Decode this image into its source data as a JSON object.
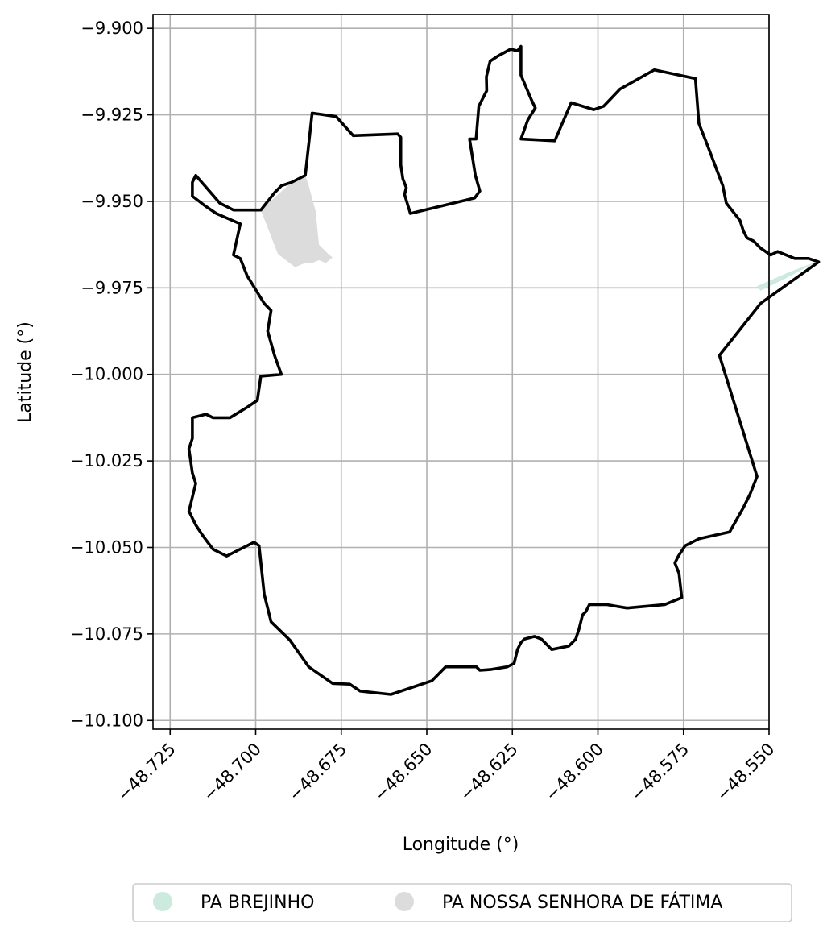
{
  "chart_data": {
    "type": "map",
    "xlabel": "Longitude (°)",
    "ylabel": "Latitude (°)",
    "xlim": [
      -48.73,
      -48.55
    ],
    "ylim": [
      -10.1025,
      -9.896
    ],
    "xticks": [
      -48.725,
      -48.7,
      -48.675,
      -48.65,
      -48.625,
      -48.6,
      -48.575,
      -48.55
    ],
    "xtick_labels": [
      "−48.725",
      "−48.700",
      "−48.675",
      "−48.650",
      "−48.625",
      "−48.600",
      "−48.575",
      "−48.550"
    ],
    "yticks": [
      -9.9,
      -9.925,
      -9.95,
      -9.975,
      -10.0,
      -10.025,
      -10.05,
      -10.075,
      -10.1
    ],
    "ytick_labels": [
      "−9.900",
      "−9.925",
      "−9.950",
      "−9.975",
      "−10.000",
      "−10.025",
      "−10.050",
      "−10.075",
      "−10.100"
    ],
    "grid": true,
    "legend_position": "bottom-center",
    "boundary": {
      "color": "#000000",
      "coords": [
        [
          -48.6835,
          -9.9245
        ],
        [
          -48.6765,
          -9.9255
        ],
        [
          -48.6715,
          -9.931
        ],
        [
          -48.6585,
          -9.9305
        ],
        [
          -48.6576,
          -9.9315
        ],
        [
          -48.6576,
          -9.9395
        ],
        [
          -48.657,
          -9.9435
        ],
        [
          -48.656,
          -9.946
        ],
        [
          -48.6565,
          -9.948
        ],
        [
          -48.6548,
          -9.9535
        ],
        [
          -48.636,
          -9.949
        ],
        [
          -48.6345,
          -9.947
        ],
        [
          -48.6358,
          -9.9425
        ],
        [
          -48.6375,
          -9.932
        ],
        [
          -48.6356,
          -9.932
        ],
        [
          -48.6348,
          -9.9225
        ],
        [
          -48.6325,
          -9.918
        ],
        [
          -48.6326,
          -9.914
        ],
        [
          -48.6315,
          -9.9095
        ],
        [
          -48.6292,
          -9.908
        ],
        [
          -48.6255,
          -9.906
        ],
        [
          -48.6235,
          -9.9065
        ],
        [
          -48.6225,
          -9.9052
        ],
        [
          -48.6225,
          -9.9135
        ],
        [
          -48.6195,
          -9.9205
        ],
        [
          -48.6183,
          -9.923
        ],
        [
          -48.6205,
          -9.9265
        ],
        [
          -48.6225,
          -9.932
        ],
        [
          -48.6126,
          -9.9325
        ],
        [
          -48.6078,
          -9.9215
        ],
        [
          -48.6012,
          -9.9235
        ],
        [
          -48.5983,
          -9.9225
        ],
        [
          -48.5935,
          -9.9175
        ],
        [
          -48.5835,
          -9.912
        ],
        [
          -48.5715,
          -9.9145
        ],
        [
          -48.5705,
          -9.9275
        ],
        [
          -48.5685,
          -9.9325
        ],
        [
          -48.5635,
          -9.9455
        ],
        [
          -48.5625,
          -9.9505
        ],
        [
          -48.5585,
          -9.9555
        ],
        [
          -48.5575,
          -9.9585
        ],
        [
          -48.5565,
          -9.9605
        ],
        [
          -48.5545,
          -9.9615
        ],
        [
          -48.5525,
          -9.9635
        ],
        [
          -48.5495,
          -9.9655
        ],
        [
          -48.5475,
          -9.9645
        ],
        [
          -48.5425,
          -9.9665
        ],
        [
          -48.5385,
          -9.9665
        ],
        [
          -48.5355,
          -9.9675
        ],
        [
          -48.5525,
          -9.9795
        ],
        [
          -48.5645,
          -9.9945
        ],
        [
          -48.5535,
          -10.0295
        ],
        [
          -48.5555,
          -10.0345
        ],
        [
          -48.5575,
          -10.0385
        ],
        [
          -48.5615,
          -10.0455
        ],
        [
          -48.5705,
          -10.0475
        ],
        [
          -48.5745,
          -10.0495
        ],
        [
          -48.5765,
          -10.0525
        ],
        [
          -48.5775,
          -10.0545
        ],
        [
          -48.5763,
          -10.0575
        ],
        [
          -48.5755,
          -10.0645
        ],
        [
          -48.5805,
          -10.0665
        ],
        [
          -48.5915,
          -10.0675
        ],
        [
          -48.5975,
          -10.0665
        ],
        [
          -48.6025,
          -10.0665
        ],
        [
          -48.6035,
          -10.0685
        ],
        [
          -48.6045,
          -10.0695
        ],
        [
          -48.6055,
          -10.0735
        ],
        [
          -48.6065,
          -10.0765
        ],
        [
          -48.6085,
          -10.0785
        ],
        [
          -48.6135,
          -10.0795
        ],
        [
          -48.6145,
          -10.0785
        ],
        [
          -48.6165,
          -10.0765
        ],
        [
          -48.6185,
          -10.0757
        ],
        [
          -48.6215,
          -10.0765
        ],
        [
          -48.6225,
          -10.0775
        ],
        [
          -48.6235,
          -10.0795
        ],
        [
          -48.6245,
          -10.0835
        ],
        [
          -48.6265,
          -10.0845
        ],
        [
          -48.6315,
          -10.0853
        ],
        [
          -48.6345,
          -10.0855
        ],
        [
          -48.6355,
          -10.0845
        ],
        [
          -48.6395,
          -10.0845
        ],
        [
          -48.6445,
          -10.0845
        ],
        [
          -48.6485,
          -10.0885
        ],
        [
          -48.6545,
          -10.0905
        ],
        [
          -48.6605,
          -10.0925
        ],
        [
          -48.6695,
          -10.0915
        ],
        [
          -48.6725,
          -10.0895
        ],
        [
          -48.6775,
          -10.0893
        ],
        [
          -48.6845,
          -10.0845
        ],
        [
          -48.69,
          -10.0768
        ],
        [
          -48.6955,
          -10.0715
        ],
        [
          -48.6975,
          -10.0635
        ],
        [
          -48.699,
          -10.0495
        ],
        [
          -48.7005,
          -10.0485
        ],
        [
          -48.7025,
          -10.0495
        ],
        [
          -48.7085,
          -10.0525
        ],
        [
          -48.7125,
          -10.0505
        ],
        [
          -48.7155,
          -10.0465
        ],
        [
          -48.7175,
          -10.0435
        ],
        [
          -48.7195,
          -10.0395
        ],
        [
          -48.7175,
          -10.0315
        ],
        [
          -48.7185,
          -10.0285
        ],
        [
          -48.7195,
          -10.0215
        ],
        [
          -48.7185,
          -10.0185
        ],
        [
          -48.7185,
          -10.0125
        ],
        [
          -48.7145,
          -10.0115
        ],
        [
          -48.7125,
          -10.0125
        ],
        [
          -48.7075,
          -10.0125
        ],
        [
          -48.7025,
          -10.0095
        ],
        [
          -48.6995,
          -10.0075
        ],
        [
          -48.6985,
          -10.0005
        ],
        [
          -48.6925,
          -10.0
        ],
        [
          -48.6945,
          -9.9945
        ],
        [
          -48.6965,
          -9.9875
        ],
        [
          -48.6955,
          -9.9815
        ],
        [
          -48.6975,
          -9.9795
        ],
        [
          -48.7025,
          -9.9715
        ],
        [
          -48.7045,
          -9.9665
        ],
        [
          -48.7065,
          -9.9655
        ],
        [
          -48.7045,
          -9.9565
        ],
        [
          -48.7115,
          -9.9535
        ],
        [
          -48.7145,
          -9.9515
        ],
        [
          -48.7185,
          -9.9485
        ],
        [
          -48.7185,
          -9.9445
        ],
        [
          -48.7175,
          -9.9425
        ],
        [
          -48.7105,
          -9.9505
        ],
        [
          -48.7065,
          -9.9525
        ],
        [
          -48.6985,
          -9.9525
        ],
        [
          -48.6945,
          -9.9475
        ],
        [
          -48.6925,
          -9.9455
        ],
        [
          -48.6895,
          -9.9445
        ],
        [
          -48.6855,
          -9.9425
        ],
        [
          -48.6835,
          -9.9245
        ]
      ]
    },
    "regions": [
      {
        "name": "PA BREJINHO",
        "color": "#cdeade",
        "coords": [
          [
            -48.5355,
            -9.9672
          ],
          [
            -48.5435,
            -9.9714
          ],
          [
            -48.5455,
            -9.9724
          ],
          [
            -48.5525,
            -9.9758
          ],
          [
            -48.5535,
            -9.9745
          ],
          [
            -48.5445,
            -9.9706
          ],
          [
            -48.5355,
            -9.9672
          ]
        ]
      },
      {
        "name": "PA NOSSA SENHORA DE FÁTIMA",
        "color": "#dcdcdc",
        "coords": [
          [
            -48.6985,
            -9.9525
          ],
          [
            -48.6895,
            -9.9445
          ],
          [
            -48.6855,
            -9.9425
          ],
          [
            -48.6845,
            -9.9455
          ],
          [
            -48.6825,
            -9.9528
          ],
          [
            -48.6815,
            -9.9625
          ],
          [
            -48.6785,
            -9.9655
          ],
          [
            -48.6775,
            -9.9662
          ],
          [
            -48.6795,
            -9.9678
          ],
          [
            -48.6815,
            -9.967
          ],
          [
            -48.6835,
            -9.9678
          ],
          [
            -48.6855,
            -9.9678
          ],
          [
            -48.6885,
            -9.969
          ],
          [
            -48.6935,
            -9.9652
          ],
          [
            -48.6985,
            -9.9525
          ]
        ]
      }
    ],
    "legend": [
      {
        "label": "PA BREJINHO",
        "color": "#cdeade"
      },
      {
        "label": "PA NOSSA SENHORA DE FÁTIMA",
        "color": "#dcdcdc"
      }
    ]
  }
}
